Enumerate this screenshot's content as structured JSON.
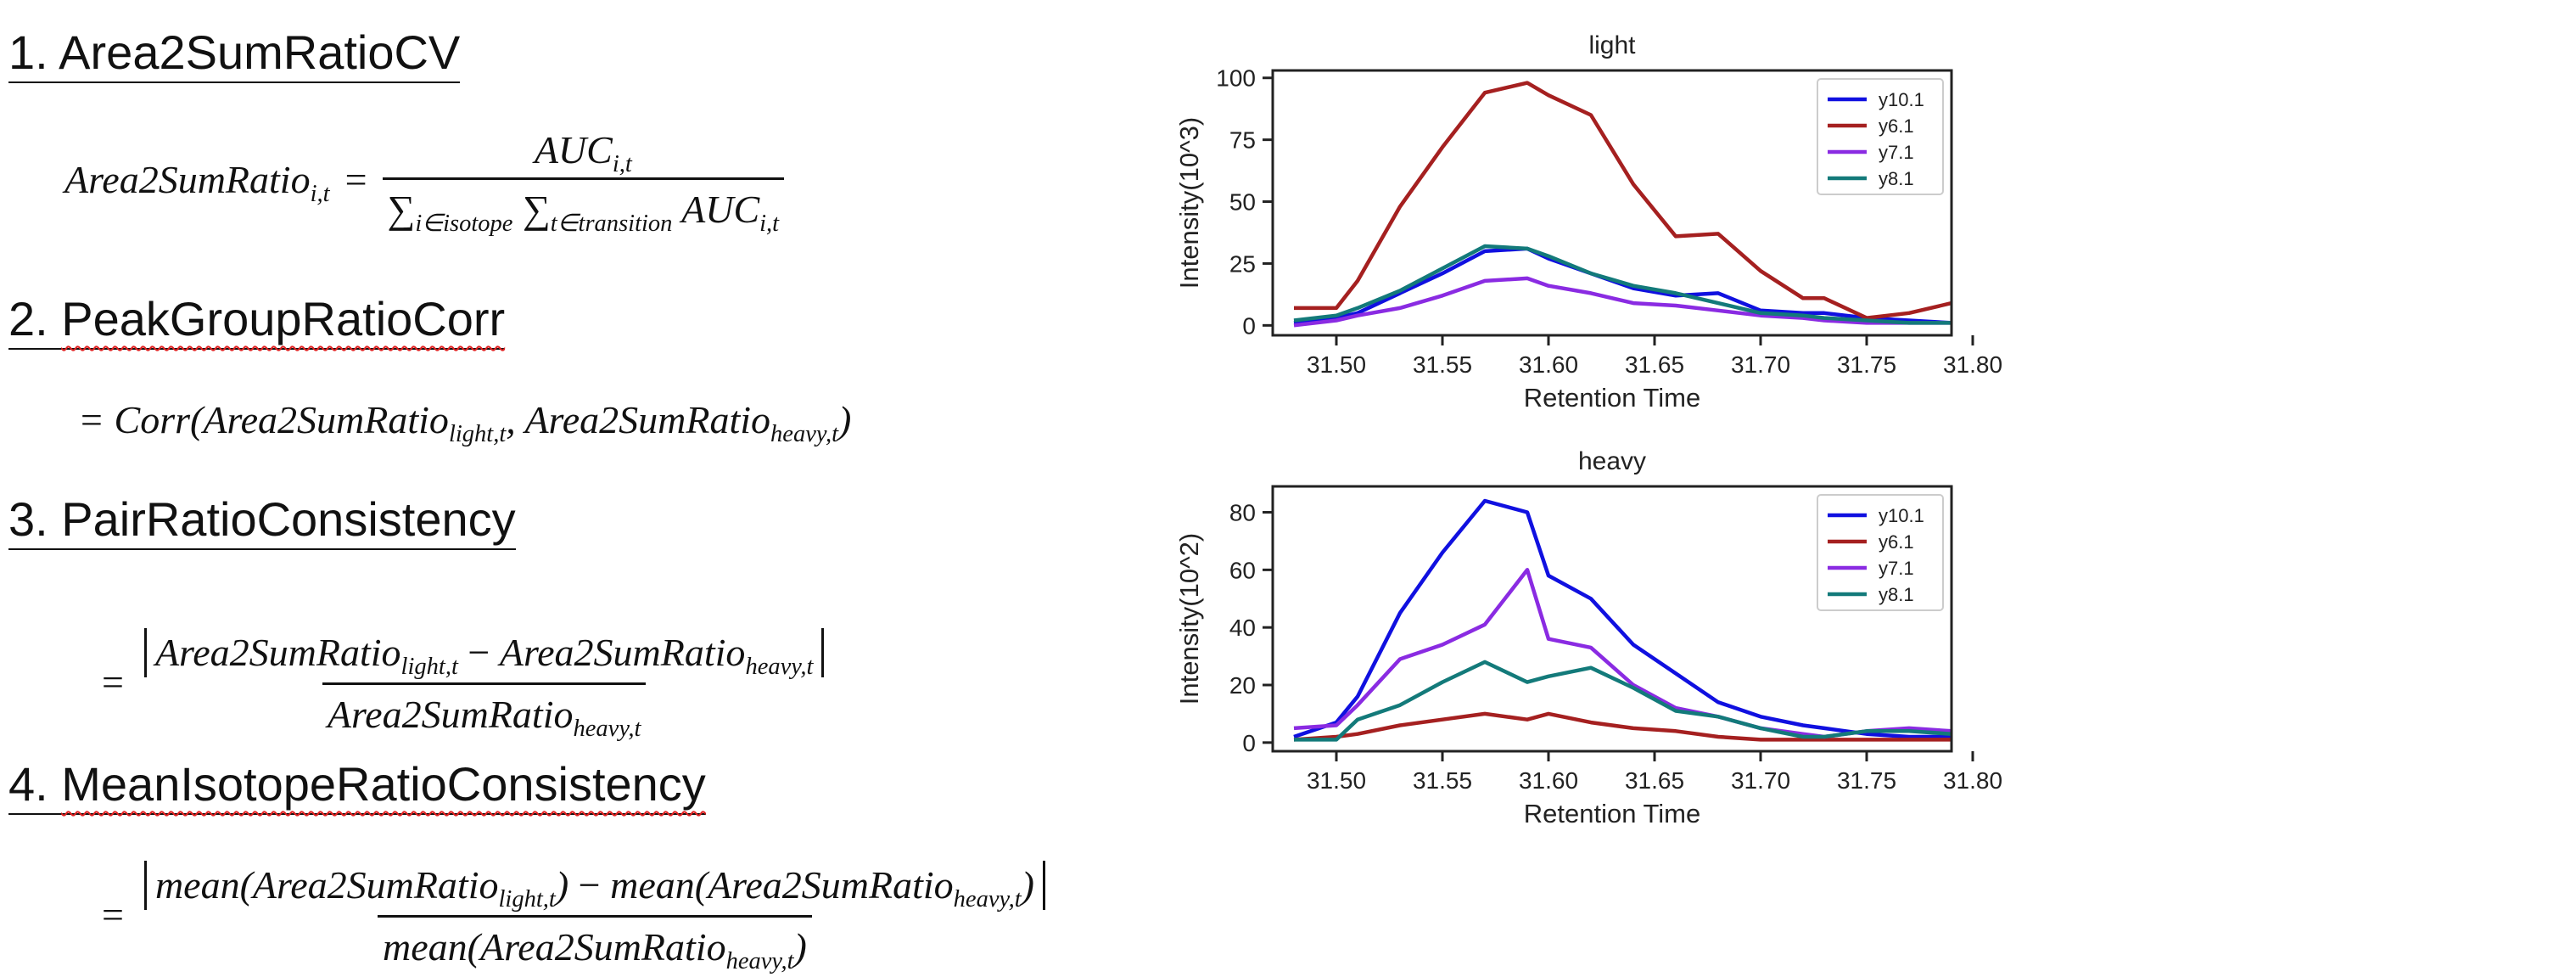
{
  "metrics": [
    {
      "number": "1.",
      "name": "Area2SumRatioCV"
    },
    {
      "number": "2.",
      "name": "PeakGroupRatioCorr"
    },
    {
      "number": "3.",
      "name": "PairRatioConsistency"
    },
    {
      "number": "4.",
      "name": "MeanIsotopeRatioConsistency"
    }
  ],
  "formulas": {
    "f1": {
      "lhs": "Area2SumRatio",
      "lhs_sub": "i,t",
      "eq": "=",
      "num": "AUC",
      "num_sub": "i,t",
      "sum1": "∑",
      "sum1_sub": "i∈isotope",
      "sum2": "∑",
      "sum2_sub": "t∈transition",
      "den": "AUC",
      "den_sub": "i,t"
    },
    "f2": {
      "text": "= Corr(",
      "a": "Area2SumRatio",
      "a_sub": "light,t",
      "comma": ", ",
      "b": "Area2SumRatio",
      "b_sub": "heavy,t",
      "close": ")"
    },
    "f3": {
      "eq": "=",
      "a": "Area2SumRatio",
      "a_sub": "light,t",
      "minus": " − ",
      "b": "Area2SumRatio",
      "b_sub": "heavy,t",
      "den": "Area2SumRatio",
      "den_sub": "heavy,t"
    },
    "f4": {
      "eq": "=",
      "a": "mean(Area2SumRatio",
      "a_sub": "light,t",
      "a_close": ")",
      "minus": " − ",
      "b": "mean(Area2SumRatio",
      "b_sub": "heavy,t",
      "b_close": ")",
      "den": "mean(Area2SumRatio",
      "den_sub": "heavy,t",
      "den_close": ")"
    }
  },
  "colors": {
    "y10.1": "#1010e0",
    "y6.1": "#a52020",
    "y7.1": "#8a2be2",
    "y8.1": "#137a7a"
  },
  "chart_data": [
    {
      "type": "line",
      "title": "light",
      "xlabel": "Retention Time",
      "ylabel": "Intensity(10^3)",
      "xlim": [
        31.47,
        31.79
      ],
      "ylim": [
        -4,
        103
      ],
      "xticks": [
        "31.50",
        "31.55",
        "31.60",
        "31.65",
        "31.70",
        "31.75",
        "31.80"
      ],
      "yticks": [
        "0",
        "25",
        "50",
        "75",
        "100"
      ],
      "legend": "top-right",
      "x": [
        31.48,
        31.5,
        31.51,
        31.53,
        31.55,
        31.57,
        31.59,
        31.6,
        31.62,
        31.64,
        31.66,
        31.68,
        31.7,
        31.72,
        31.73,
        31.75,
        31.77,
        31.79
      ],
      "series": [
        {
          "name": "y10.1",
          "values": [
            1,
            3,
            5,
            13,
            21,
            30,
            31,
            27,
            21,
            15,
            12,
            13,
            6,
            5,
            5,
            3,
            2,
            1
          ]
        },
        {
          "name": "y6.1",
          "values": [
            7,
            7,
            18,
            48,
            72,
            94,
            98,
            93,
            85,
            57,
            36,
            37,
            22,
            11,
            11,
            3,
            5,
            9
          ]
        },
        {
          "name": "y7.1",
          "values": [
            0,
            2,
            4,
            7,
            12,
            18,
            19,
            16,
            13,
            9,
            8,
            6,
            4,
            3,
            2,
            1,
            1,
            1
          ]
        },
        {
          "name": "y8.1",
          "values": [
            2,
            4,
            7,
            14,
            23,
            32,
            31,
            28,
            21,
            16,
            13,
            9,
            5,
            4,
            3,
            2,
            1,
            1
          ]
        }
      ]
    },
    {
      "type": "line",
      "title": "heavy",
      "xlabel": "Retention Time",
      "ylabel": "Intensity(10^2)",
      "xlim": [
        31.47,
        31.79
      ],
      "ylim": [
        -3,
        89
      ],
      "xticks": [
        "31.50",
        "31.55",
        "31.60",
        "31.65",
        "31.70",
        "31.75",
        "31.80"
      ],
      "yticks": [
        "0",
        "20",
        "40",
        "60",
        "80"
      ],
      "legend": "top-right",
      "x": [
        31.48,
        31.5,
        31.51,
        31.53,
        31.55,
        31.57,
        31.59,
        31.6,
        31.62,
        31.64,
        31.66,
        31.68,
        31.7,
        31.72,
        31.73,
        31.75,
        31.77,
        31.79
      ],
      "series": [
        {
          "name": "y10.1",
          "values": [
            2,
            7,
            16,
            45,
            66,
            84,
            80,
            58,
            50,
            34,
            24,
            14,
            9,
            6,
            5,
            3,
            2,
            2
          ]
        },
        {
          "name": "y6.1",
          "values": [
            1,
            2,
            3,
            6,
            8,
            10,
            8,
            10,
            7,
            5,
            4,
            2,
            1,
            1,
            1,
            1,
            1,
            1
          ]
        },
        {
          "name": "y7.1",
          "values": [
            5,
            6,
            13,
            29,
            34,
            41,
            60,
            36,
            33,
            20,
            12,
            9,
            5,
            3,
            2,
            4,
            5,
            4
          ]
        },
        {
          "name": "y8.1",
          "values": [
            1,
            1,
            8,
            13,
            21,
            28,
            21,
            23,
            26,
            19,
            11,
            9,
            5,
            2,
            2,
            4,
            4,
            3
          ]
        }
      ]
    }
  ]
}
